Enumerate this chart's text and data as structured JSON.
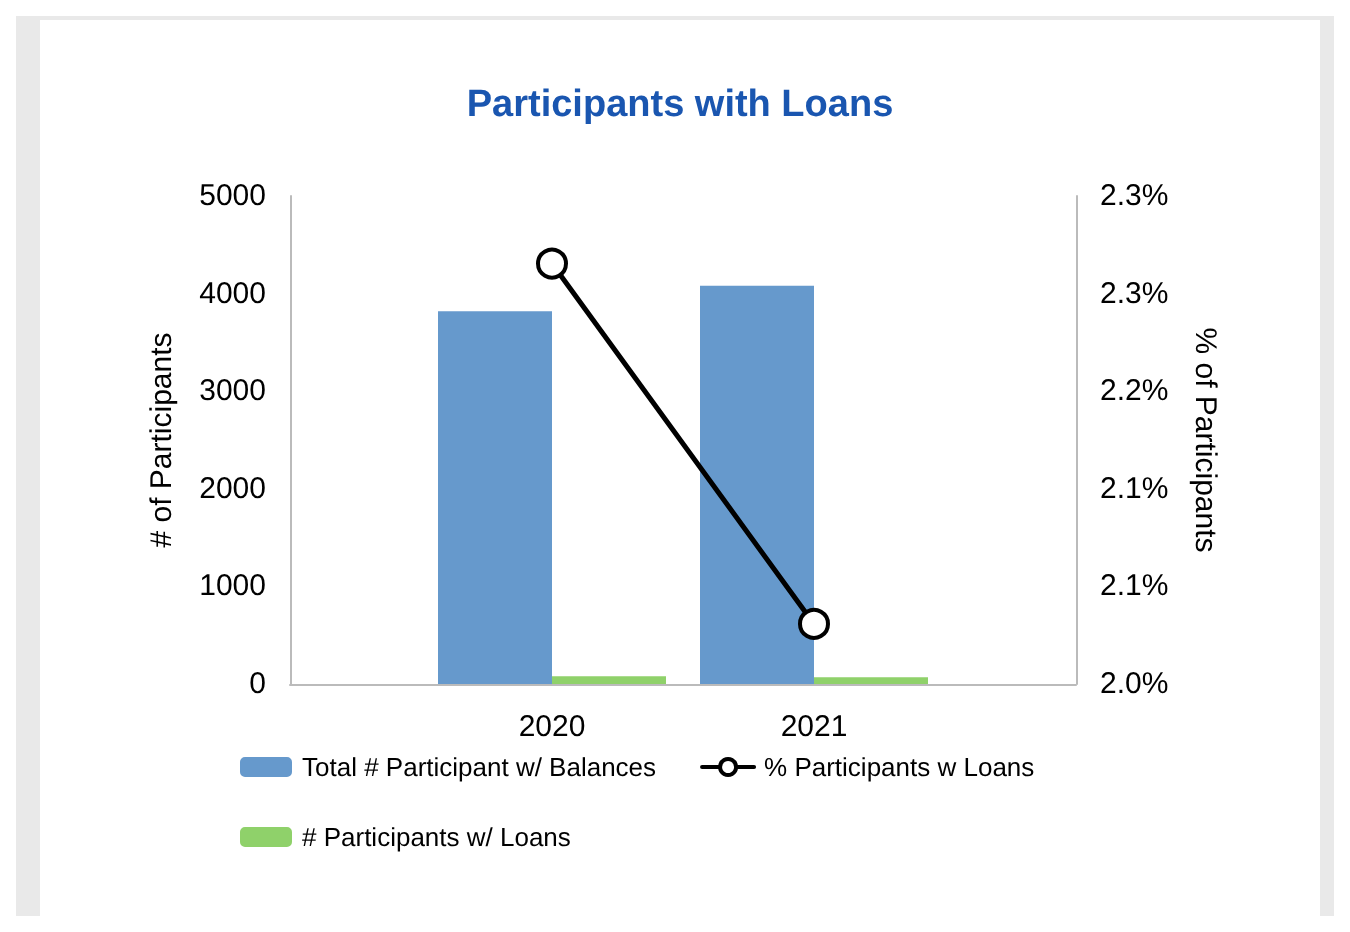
{
  "chart_data": {
    "type": "bar",
    "title": "Participants with Loans",
    "ylabel": "# of Participants",
    "y2label": "% of Participants",
    "categories": [
      null,
      "2020",
      "2021",
      null
    ],
    "series": [
      {
        "name": "Total # Participant w/ Balances",
        "color": "#6699cc",
        "values": [
          null,
          3820,
          4080,
          null
        ]
      },
      {
        "name": "# Participants w/ Loans",
        "color": "#8fd16a",
        "values": [
          null,
          80,
          70,
          null
        ]
      },
      {
        "name": "% Participants w Loans",
        "type": "line",
        "axis": "y2",
        "color": "#000000",
        "marker": "circle",
        "values": [
          null,
          2.28,
          2.04,
          null
        ]
      }
    ],
    "ylim": [
      0,
      5000
    ],
    "yticks": [
      0,
      1000,
      2000,
      3000,
      4000,
      5000
    ],
    "y2lim": [
      2.0,
      2.325
    ],
    "y2ticks": [
      {
        "value": 2.0,
        "label": "2.0%"
      },
      {
        "value": 2.065,
        "label": "2.1%"
      },
      {
        "value": 2.13,
        "label": "2.1%"
      },
      {
        "value": 2.195,
        "label": "2.2%"
      },
      {
        "value": 2.26,
        "label": "2.3%"
      },
      {
        "value": 2.325,
        "label": "2.3%"
      }
    ],
    "grid": false,
    "legend": "bottom"
  }
}
